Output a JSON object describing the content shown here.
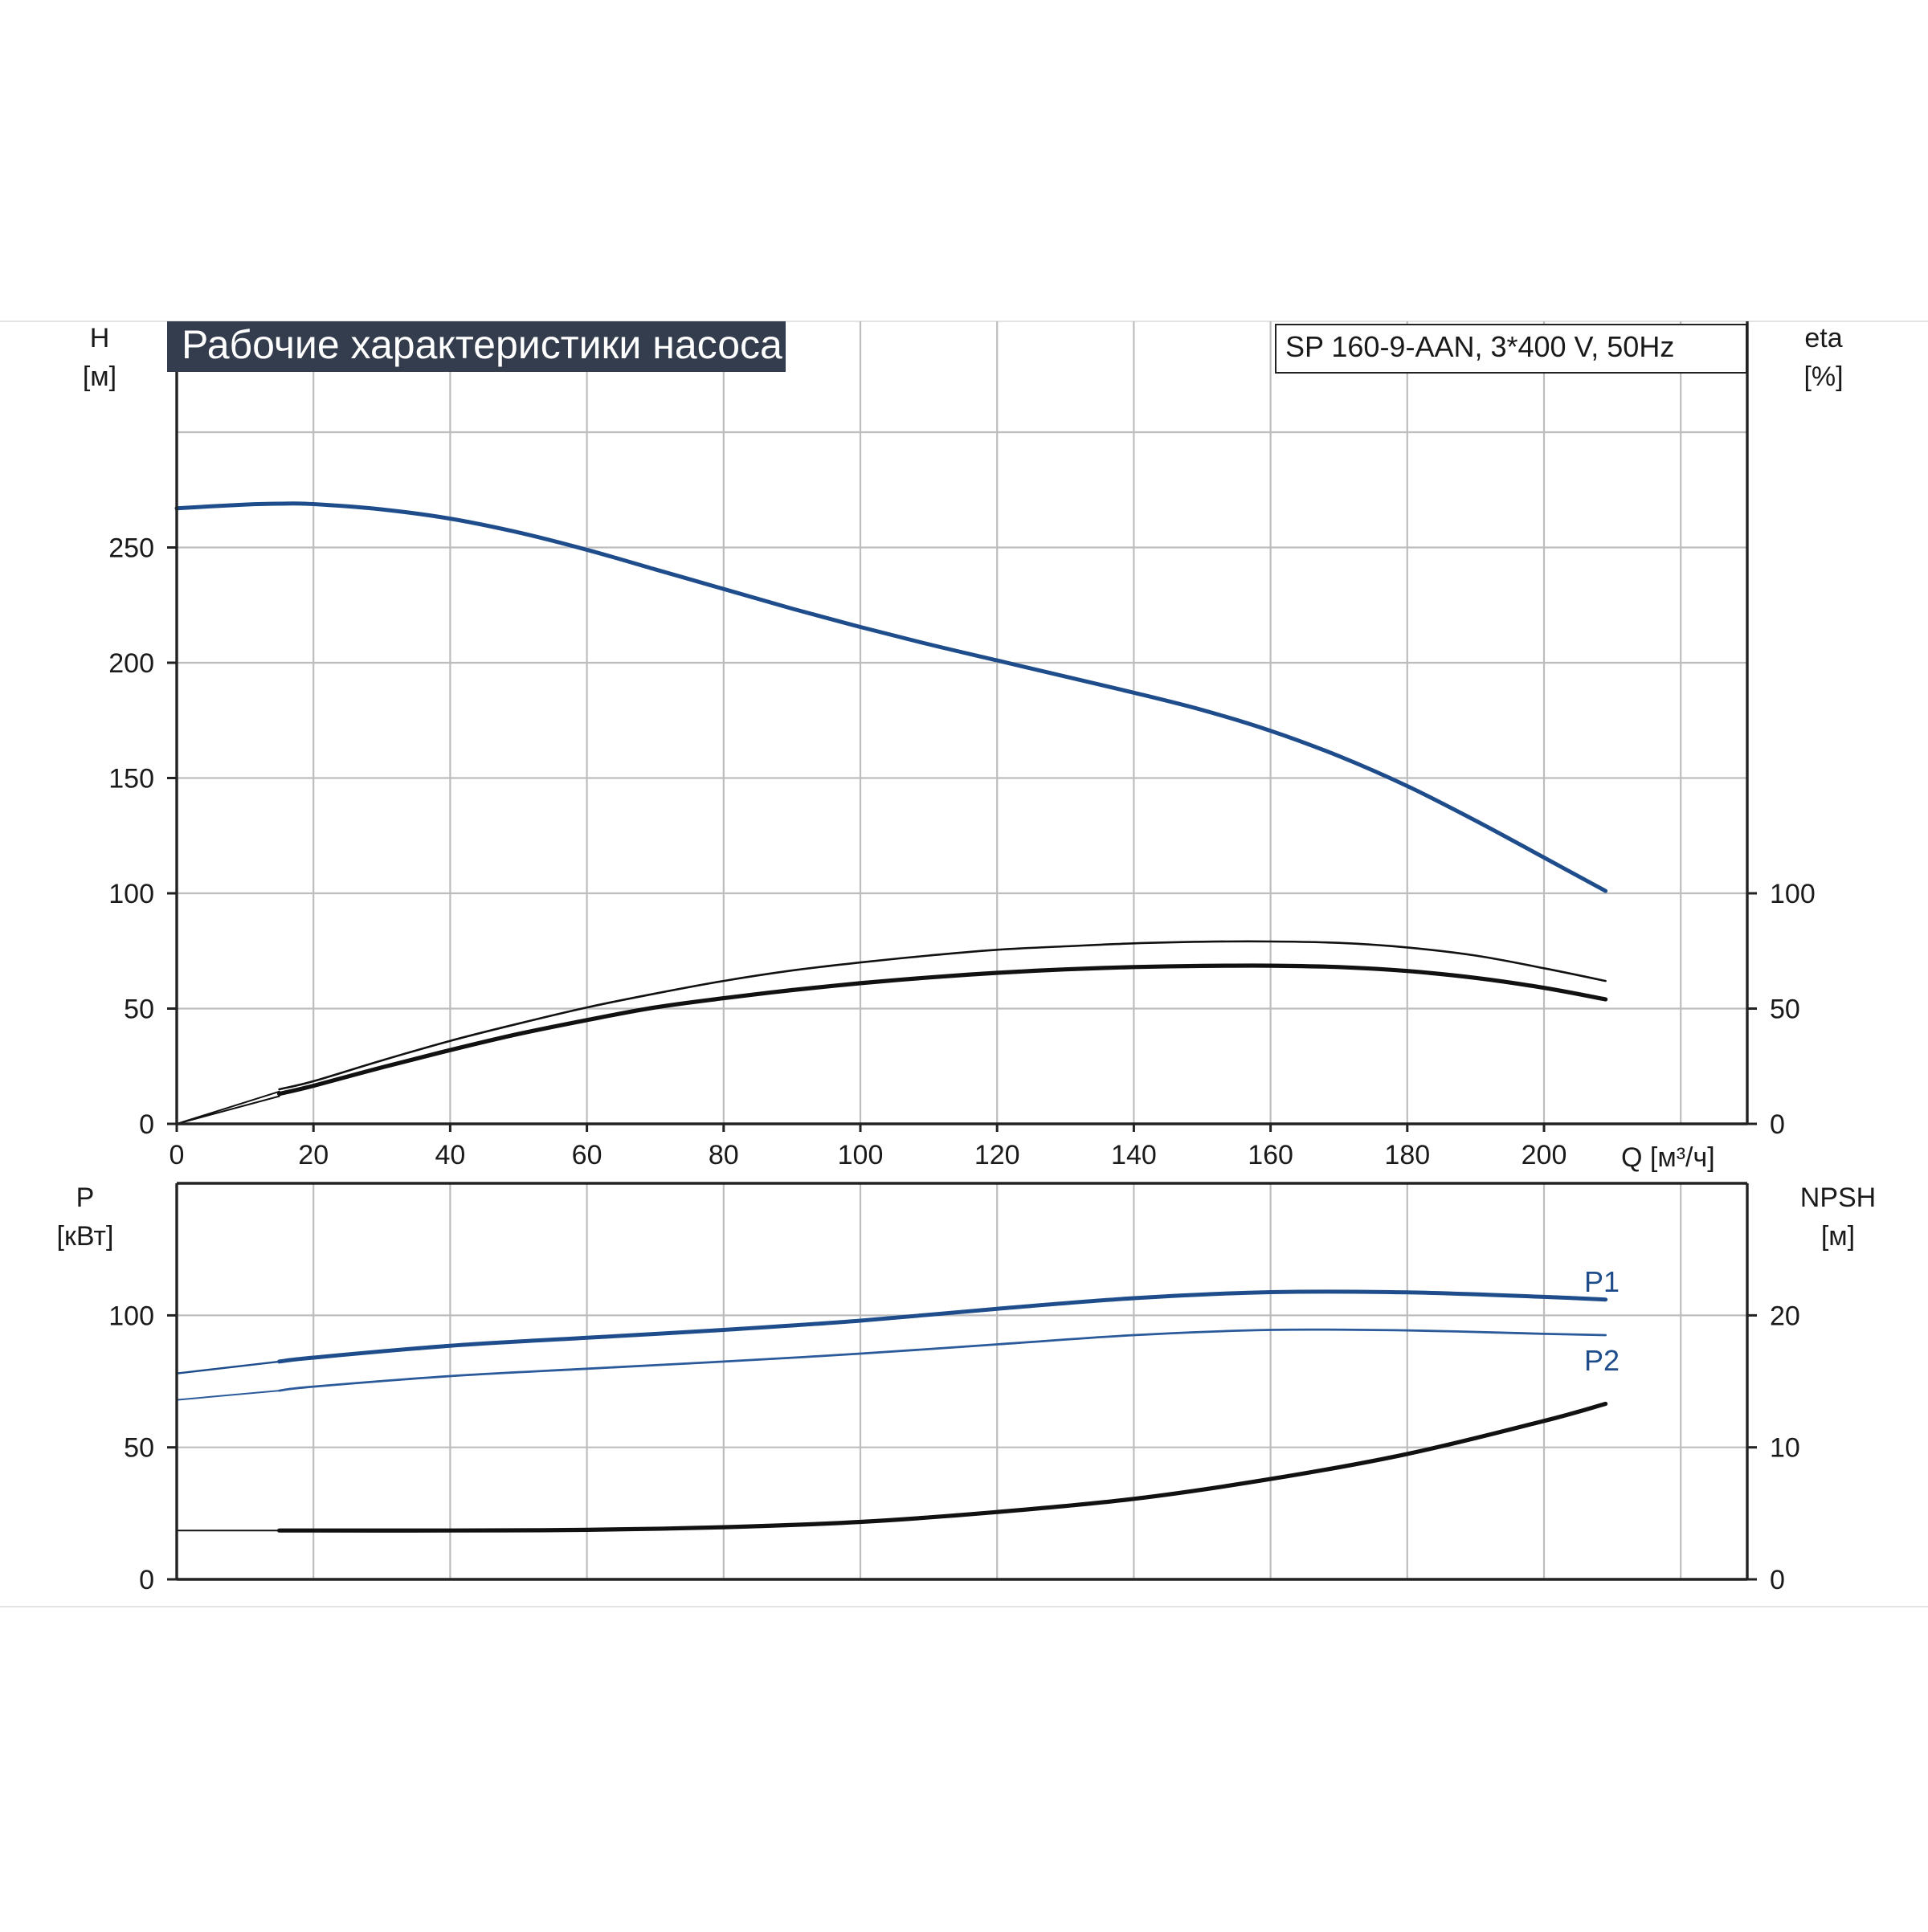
{
  "title": "Рабочие характеристики насоса",
  "model": "SP 160-9-AAN, 3*400 V, 50Hz",
  "colors": {
    "head": "#1f4d8c",
    "p1": "#1f4d8c",
    "p2": "#2a5a9a",
    "black": "#111111",
    "title_bg": "#333d4d",
    "grid": "#bdbdbd"
  },
  "x_axis": {
    "label": "Q [м³/ч]",
    "range": [
      0,
      230
    ],
    "ticks": [
      0,
      20,
      40,
      60,
      80,
      100,
      120,
      140,
      160,
      180,
      200
    ],
    "grid": [
      0,
      20,
      40,
      60,
      80,
      100,
      120,
      140,
      160,
      180,
      200,
      220
    ]
  },
  "upper_panel": {
    "left_axis": {
      "label": "H",
      "unit": "[м]",
      "range": [
        0,
        350
      ],
      "ticks": [
        0,
        50,
        100,
        150,
        200,
        250
      ],
      "grid": [
        50,
        100,
        150,
        200,
        250,
        300
      ]
    },
    "right_axis": {
      "label": "eta",
      "unit": "[%]",
      "ticks": [
        0,
        50,
        100
      ]
    }
  },
  "lower_panel": {
    "left_axis": {
      "label": "P",
      "unit": "[кВт]",
      "range": [
        0,
        150
      ],
      "ticks": [
        0,
        50,
        100
      ],
      "grid": [
        50,
        100
      ]
    },
    "right_axis": {
      "label": "NPSH",
      "unit": "[м]",
      "ticks": [
        0,
        10,
        20
      ]
    }
  },
  "chart_data": [
    {
      "type": "line",
      "panel": "upper",
      "xlabel": "Q [м³/ч]",
      "ylabel": "H [м]",
      "y2label": "eta [%]",
      "xlim": [
        0,
        230
      ],
      "ylim": [
        0,
        350
      ],
      "grid": true,
      "series": [
        {
          "key": "head",
          "axis": "left",
          "color": "#1f4d8c",
          "width": 5,
          "x": [
            0,
            10,
            15,
            20,
            30,
            40,
            50,
            60,
            70,
            80,
            90,
            100,
            110,
            120,
            130,
            140,
            150,
            160,
            170,
            180,
            190,
            200,
            209
          ],
          "values": [
            267,
            268.6,
            269,
            268.8,
            266.5,
            262.5,
            256.5,
            249,
            240.5,
            232,
            223.5,
            215.5,
            208,
            201,
            194,
            187,
            179.5,
            170.5,
            159.5,
            146.5,
            131.5,
            115.5,
            101
          ]
        },
        {
          "key": "eta-lead-upper",
          "axis": "left",
          "color": "#111111",
          "width": 2,
          "x": [
            0,
            15
          ],
          "values": [
            0,
            14
          ]
        },
        {
          "key": "eta-lead-lower",
          "axis": "left",
          "color": "#111111",
          "width": 2,
          "x": [
            0,
            15
          ],
          "values": [
            0,
            12
          ]
        },
        {
          "key": "eta-thin",
          "axis": "left",
          "color": "#111111",
          "width": 2.6,
          "x": [
            15,
            20,
            30,
            40,
            50,
            60,
            70,
            80,
            90,
            100,
            110,
            120,
            130,
            140,
            150,
            160,
            170,
            180,
            190,
            200,
            209
          ],
          "values": [
            15,
            18.5,
            27.5,
            36,
            43.5,
            50.5,
            56.5,
            62,
            66.5,
            70,
            73,
            75.5,
            77,
            78.3,
            79,
            79.1,
            78.5,
            76.5,
            73,
            67.5,
            62
          ]
        },
        {
          "key": "eta-bold",
          "axis": "left",
          "color": "#111111",
          "width": 5.2,
          "x": [
            15,
            20,
            30,
            40,
            50,
            60,
            70,
            80,
            90,
            100,
            110,
            120,
            130,
            140,
            150,
            160,
            170,
            180,
            190,
            200,
            209
          ],
          "values": [
            13,
            16.5,
            24.5,
            32,
            39,
            45,
            50.5,
            54.5,
            58,
            61,
            63.5,
            65.5,
            67,
            68,
            68.5,
            68.6,
            68,
            66.3,
            63.3,
            59,
            54
          ]
        }
      ]
    },
    {
      "type": "line",
      "panel": "lower",
      "xlabel": "Q [м³/ч]",
      "ylabel": "P [кВт]",
      "y2label": "NPSH [м]",
      "xlim": [
        0,
        230
      ],
      "ylim": [
        0,
        150
      ],
      "grid": true,
      "series": [
        {
          "key": "p1-lead",
          "name": "P1",
          "axis": "left",
          "color": "#1f4d8c",
          "width": 2.4,
          "x": [
            0,
            15
          ],
          "values": [
            78,
            82.5
          ]
        },
        {
          "key": "p1",
          "name": "P1",
          "axis": "left",
          "color": "#1f4d8c",
          "width": 5,
          "x": [
            15,
            20,
            40,
            60,
            80,
            100,
            120,
            140,
            160,
            180,
            200,
            209
          ],
          "values": [
            82.5,
            84,
            88.5,
            91.5,
            94.5,
            98,
            102.5,
            106.5,
            108.8,
            108.7,
            107,
            106
          ]
        },
        {
          "key": "p2-lead",
          "name": "P2",
          "axis": "left",
          "color": "#2a5a9a",
          "width": 2,
          "x": [
            0,
            15
          ],
          "values": [
            68,
            71.5
          ]
        },
        {
          "key": "p2",
          "name": "P2",
          "axis": "left",
          "color": "#2a5a9a",
          "width": 2.8,
          "x": [
            15,
            20,
            40,
            60,
            80,
            100,
            120,
            140,
            160,
            180,
            200,
            209
          ],
          "values": [
            71.5,
            73,
            77,
            79.8,
            82.5,
            85.5,
            89,
            92.5,
            94.5,
            94.3,
            93,
            92.5
          ]
        },
        {
          "key": "npsh-lead",
          "axis": "left",
          "color": "#111111",
          "width": 2,
          "x": [
            0,
            15
          ],
          "values": [
            18.5,
            18.5
          ]
        },
        {
          "key": "npsh",
          "axis": "right",
          "color": "#111111",
          "width": 5.2,
          "x": [
            15,
            40,
            60,
            80,
            100,
            120,
            140,
            160,
            180,
            200,
            209
          ],
          "values": [
            3.7,
            3.7,
            3.75,
            3.95,
            4.35,
            5.1,
            6.1,
            7.6,
            9.5,
            12,
            13.3
          ]
        }
      ],
      "labels": [
        "P1",
        "P2"
      ]
    }
  ]
}
